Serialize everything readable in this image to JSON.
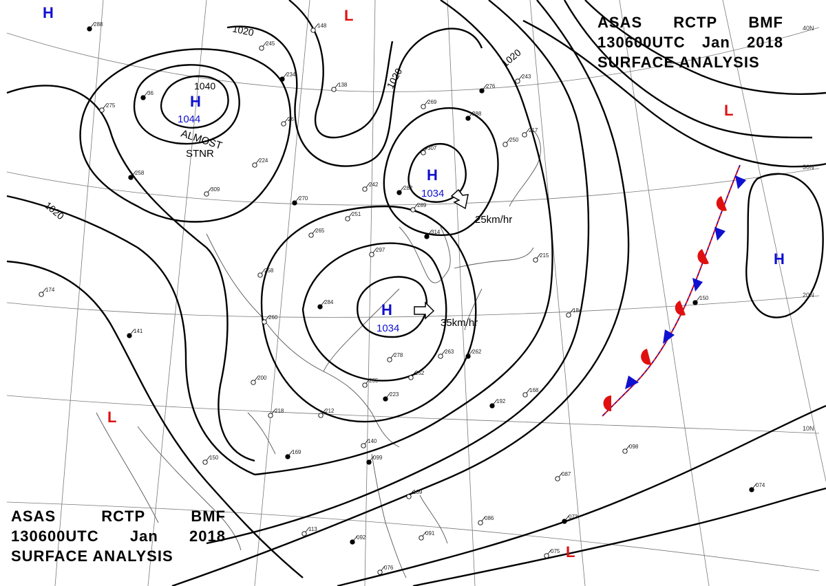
{
  "header_top_right": {
    "line1": [
      "ASAS",
      "RCTP",
      "BMF"
    ],
    "line2": [
      "130600UTC",
      "Jan",
      "2018"
    ],
    "line3": "SURFACE ANALYSIS"
  },
  "header_bottom_left": {
    "line1": [
      "ASAS",
      "RCTP",
      "BMF"
    ],
    "line2": [
      "130600UTC",
      "Jan",
      "2018"
    ],
    "line3": "SURFACE ANALYSIS"
  },
  "latitude_labels": [
    "40N",
    "30N",
    "20N",
    "10N"
  ],
  "isobar_labels": [
    "1020",
    "1020",
    "1020",
    "1020",
    "1040"
  ],
  "pressure_centers": [
    {
      "id": "h-mongolia",
      "symbol": "H",
      "value": "1044"
    },
    {
      "id": "h-korea",
      "symbol": "H",
      "value": "1034"
    },
    {
      "id": "h-china",
      "symbol": "H",
      "value": "1034"
    },
    {
      "id": "h-pacific",
      "symbol": "H",
      "value": ""
    },
    {
      "id": "h-nw-corner",
      "symbol": "H",
      "value": ""
    },
    {
      "id": "l-top",
      "symbol": "L",
      "value": ""
    },
    {
      "id": "l-ne",
      "symbol": "L",
      "value": ""
    },
    {
      "id": "l-india",
      "symbol": "L",
      "value": ""
    },
    {
      "id": "l-se",
      "symbol": "L",
      "value": ""
    }
  ],
  "annotations": {
    "almost_stnr_1": "ALMOST",
    "almost_stnr_2": "STNR",
    "movement_1": "25km/hr",
    "movement_2": "35km/hr"
  },
  "stations": [
    "288",
    "148",
    "245",
    "234",
    "138",
    "269",
    "276",
    "243",
    "275",
    "36",
    "26",
    "224",
    "258",
    "309",
    "242",
    "282",
    "307",
    "251",
    "270",
    "265",
    "289",
    "314",
    "297",
    "258",
    "284",
    "260",
    "174",
    "141",
    "215",
    "184",
    "150",
    "278",
    "263",
    "262",
    "252",
    "235",
    "223",
    "212",
    "218",
    "192",
    "168",
    "140",
    "099",
    "109",
    "086",
    "073",
    "098",
    "087",
    "074",
    "075",
    "113",
    "092",
    "091",
    "076",
    "169",
    "150",
    "200",
    "288",
    "250",
    "217"
  ],
  "colors": {
    "high": "#1010d0",
    "low": "#e01010",
    "warm_front": "#e01010",
    "cold_front": "#1010d0",
    "isobar": "#000000",
    "coastline": "#555555"
  }
}
